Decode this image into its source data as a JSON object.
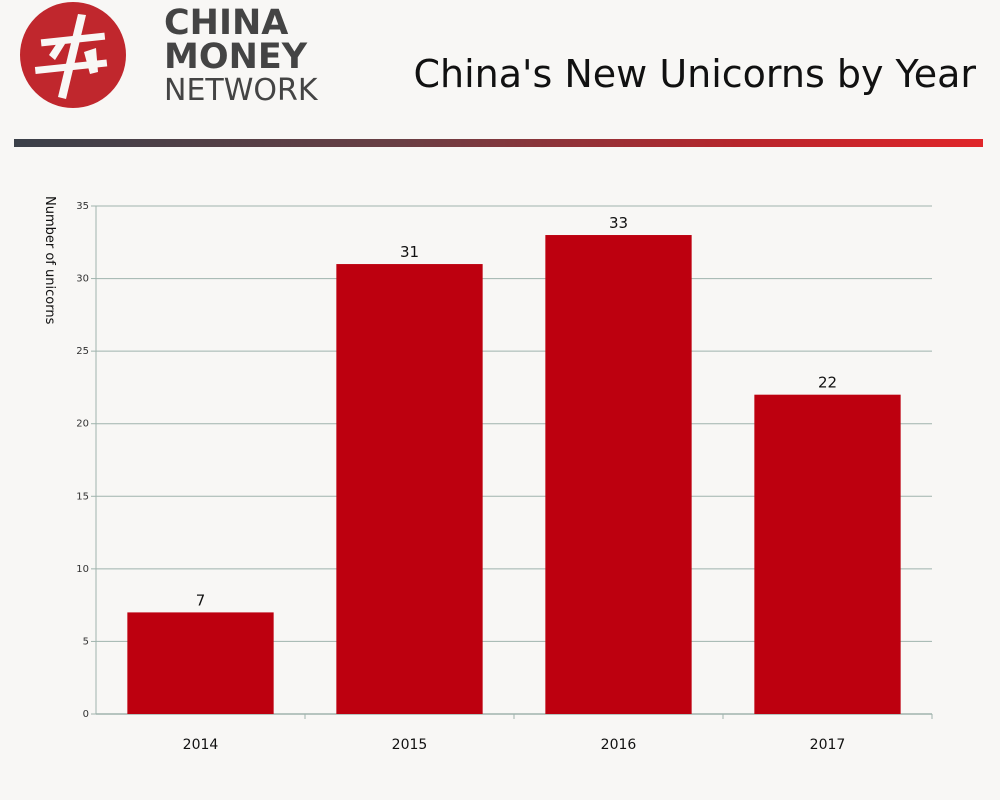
{
  "brand": {
    "line1": "CHINA",
    "line2": "MONEY",
    "line3": "NETWORK",
    "logo_icon": "china-money-network-logo-icon",
    "logo_color": "#c0272d"
  },
  "colors": {
    "bar": "#bd000f",
    "grid": "#9fb3ad",
    "text": "#111111"
  },
  "chart_data": {
    "type": "bar",
    "title": "China's New Unicorns by Year",
    "xlabel": "",
    "ylabel": "Number of unicorns",
    "categories": [
      "2014",
      "2015",
      "2016",
      "2017"
    ],
    "values": [
      7,
      31,
      33,
      22
    ],
    "data_labels": [
      "7",
      "31",
      "33",
      "22"
    ],
    "ylim": [
      0,
      35
    ],
    "yticks": [
      "0",
      "5",
      "10",
      "15",
      "20",
      "25",
      "30",
      "35"
    ],
    "grid": true,
    "legend": "none"
  }
}
